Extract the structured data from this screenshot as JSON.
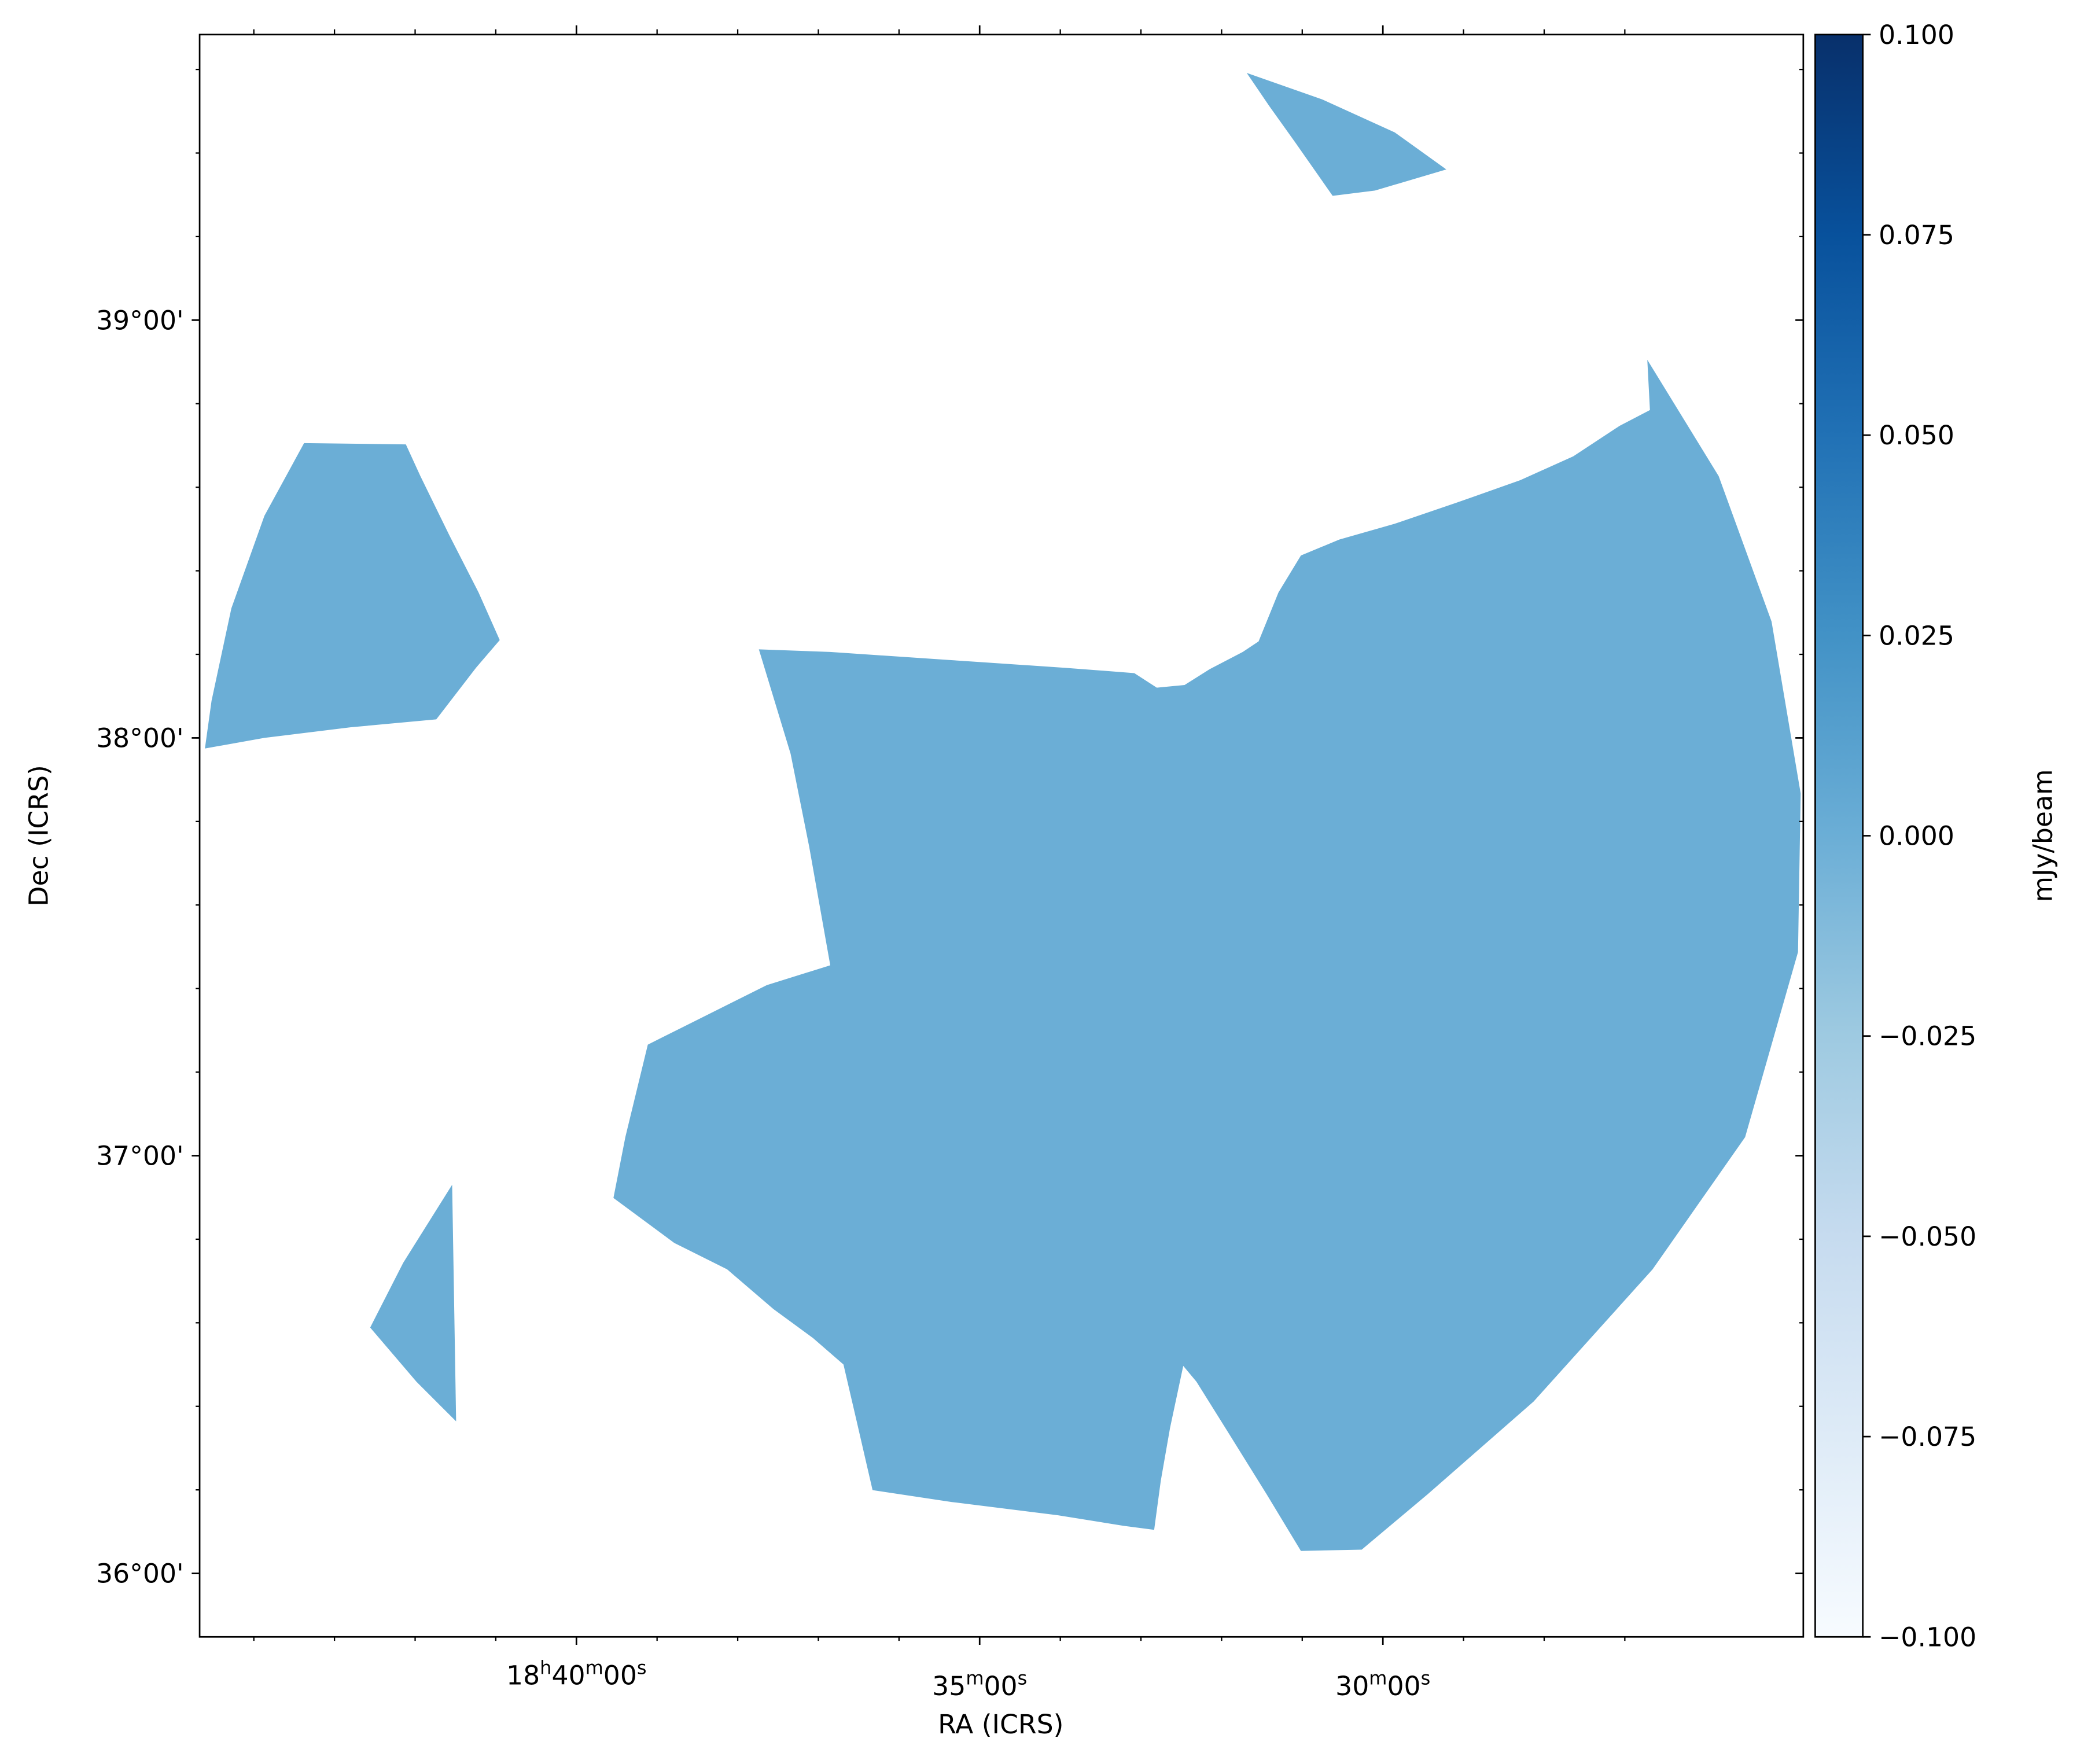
{
  "chart_data": {
    "type": "heatmap",
    "title": "",
    "xlabel": "RA (ICRS)",
    "ylabel": "Dec (ICRS)",
    "x_axis": {
      "ticks": [
        {
          "hour": "18",
          "min": "40",
          "sec": "00",
          "u_h": "h",
          "u_m": "m",
          "u_s": "s",
          "value_s": 66000
        },
        {
          "hour": "",
          "min": "35",
          "sec": "00",
          "u_h": "",
          "u_m": "m",
          "u_s": "s",
          "value_s": 65700
        },
        {
          "hour": "",
          "min": "30",
          "sec": "00",
          "u_h": "",
          "u_m": "m",
          "u_s": "s",
          "value_s": 65400
        }
      ]
    },
    "y_axis": {
      "ticks": [
        {
          "label": "36°00'",
          "value": 36.0
        },
        {
          "label": "37°00'",
          "value": 37.0
        },
        {
          "label": "38°00'",
          "value": 38.0
        },
        {
          "label": "39°00'",
          "value": 39.0
        }
      ]
    },
    "colorbar": {
      "label": "mJy/beam",
      "cmap": "Blues",
      "min": -0.1,
      "max": 0.1,
      "colors": [
        "#f7fbff",
        "#deebf7",
        "#c6dbef",
        "#9ecae1",
        "#6baed6",
        "#4292c6",
        "#2171b5",
        "#08519c",
        "#08306b"
      ],
      "ticks": [
        {
          "label": "0.100",
          "value": 0.1
        },
        {
          "label": "0.075",
          "value": 0.075
        },
        {
          "label": "0.050",
          "value": 0.05
        },
        {
          "label": "0.025",
          "value": 0.025
        },
        {
          "label": "0.000",
          "value": 0.0
        },
        {
          "label": "−0.025",
          "value": -0.025
        },
        {
          "label": "−0.050",
          "value": -0.05
        },
        {
          "label": "−0.075",
          "value": -0.075
        },
        {
          "label": "−0.100",
          "value": -0.1
        }
      ]
    },
    "image": {
      "fill_value": 0.0,
      "fill_color": "#6baed6",
      "regions": [
        "main-coverage-region",
        "upper-left-coverage-region",
        "top-coverage-region",
        "lower-left-coverage-region"
      ]
    }
  }
}
